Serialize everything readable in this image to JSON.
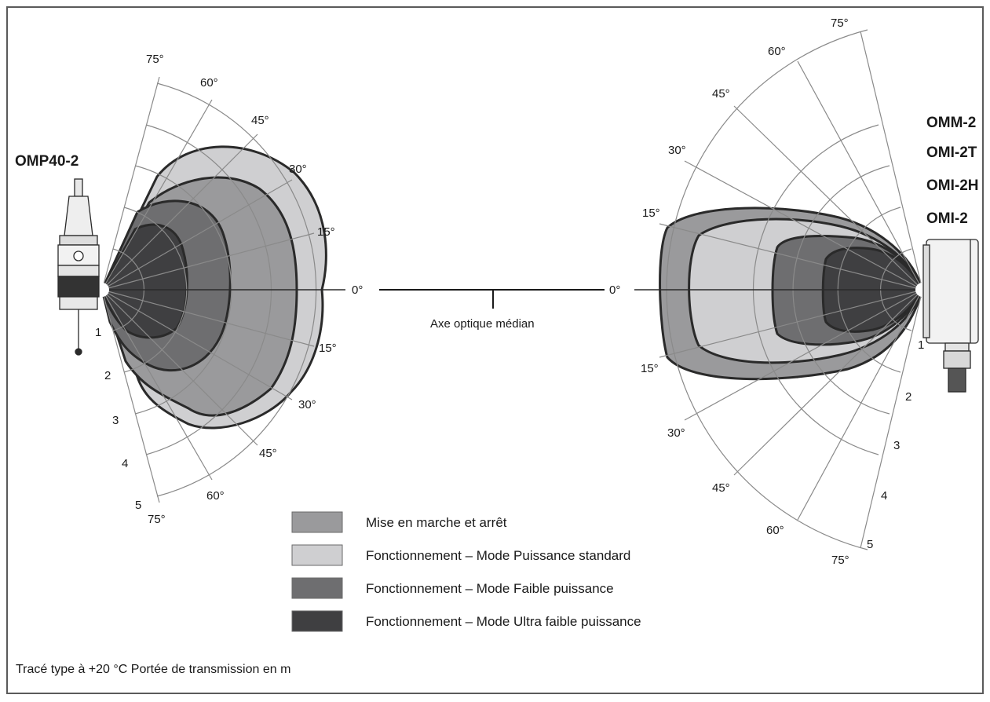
{
  "left_device": {
    "name": "OMP40-2",
    "angles_upper": [
      "75°",
      "60°",
      "45°",
      "30°",
      "15°"
    ],
    "angles_lower": [
      "15°",
      "30°",
      "45°",
      "60°",
      "75°"
    ],
    "ranges": [
      "1",
      "2",
      "3",
      "4",
      "5"
    ],
    "zero": "0°"
  },
  "right_device": {
    "names": [
      "OMM-2",
      "OMI-2T",
      "OMI-2H",
      "OMI-2"
    ],
    "angles_upper": [
      "75°",
      "60°",
      "45°",
      "30°",
      "15°"
    ],
    "angles_lower": [
      "15°",
      "30°",
      "45°",
      "60°",
      "75°"
    ],
    "ranges": [
      "1",
      "2",
      "3",
      "4",
      "5"
    ],
    "zero": "0°"
  },
  "axis_label": "Axe optique médian",
  "legend": [
    {
      "label": "Mise en marche et arrêt",
      "color": "#9a9a9c"
    },
    {
      "label": "Fonctionnement – Mode Puissance standard",
      "color": "#cfcfd1"
    },
    {
      "label": "Fonctionnement – Mode Faible puissance",
      "color": "#6e6e70"
    },
    {
      "label": "Fonctionnement – Mode Ultra faible puissance",
      "color": "#3f3f41"
    }
  ],
  "footer": "Tracé type à +20 °C Portée de transmission en m"
}
